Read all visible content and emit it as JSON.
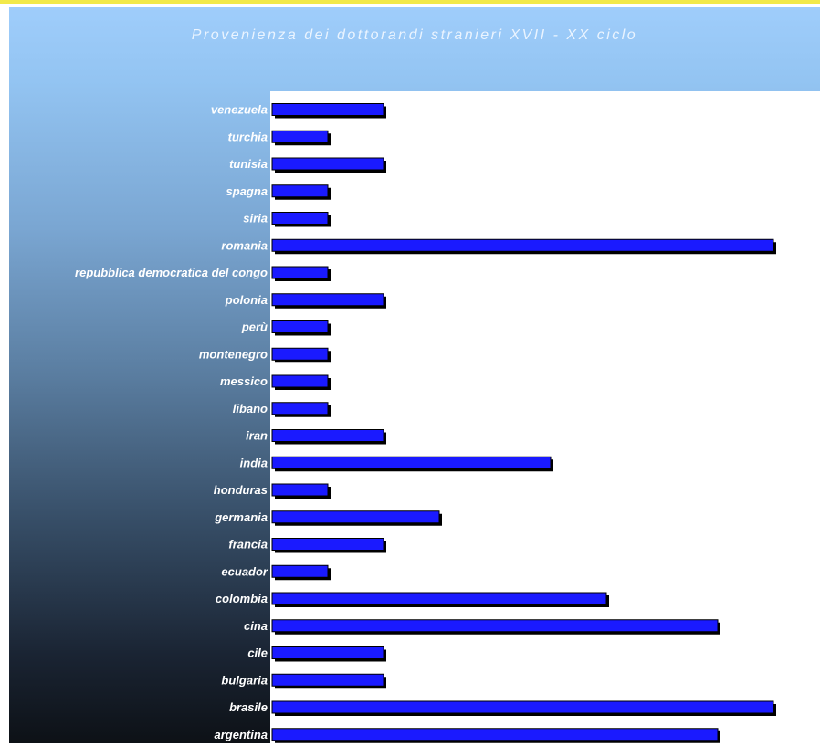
{
  "colors": {
    "bar_fill": "#1a1aff",
    "bar_shadow": "#000000",
    "bar_outline": "#000000",
    "label_text": "#ffffff",
    "title_text": "#eaf4ff",
    "plot_background": "#ffffff",
    "top_strip": "#f2e94a"
  },
  "chart_data": {
    "type": "bar",
    "orientation": "horizontal",
    "title": "Provenienza dei dottorandi stranieri XVII - XX ciclo",
    "xlabel": "",
    "ylabel": "",
    "grid": false,
    "legend": "none",
    "xlim": [
      0,
      9
    ],
    "categories": [
      "venezuela",
      "turchia",
      "tunisia",
      "spagna",
      "siria",
      "romania",
      "repubblica democratica del congo",
      "polonia",
      "perù",
      "montenegro",
      "messico",
      "libano",
      "iran",
      "india",
      "honduras",
      "germania",
      "francia",
      "ecuador",
      "colombia",
      "cina",
      "cile",
      "bulgaria",
      "brasile",
      "argentina"
    ],
    "values": [
      2,
      1,
      2,
      1,
      1,
      9,
      1,
      2,
      1,
      1,
      1,
      1,
      2,
      5,
      1,
      3,
      2,
      1,
      6,
      8,
      2,
      2,
      9,
      8
    ]
  }
}
